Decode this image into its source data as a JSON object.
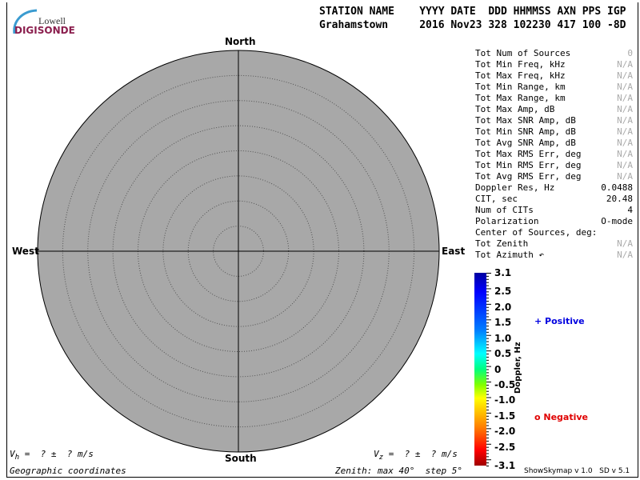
{
  "logo": {
    "line1": "Lowell",
    "line2": "DIGISONDE"
  },
  "header": {
    "labels": "STATION NAME    YYYY DATE  DDD HHMMSS AXN PPS IGP",
    "values": "Grahamstown     2016 Nov23 328 102230 417 100 -8D"
  },
  "compass": {
    "north": "North",
    "south": "South",
    "east": "East",
    "west": "West"
  },
  "rings": {
    "max_zenith_deg": 40,
    "step_deg": 5
  },
  "stats": [
    {
      "label": "Tot Num of Sources",
      "value": "0",
      "na": true
    },
    {
      "label": "Tot Min Freq, kHz",
      "value": "N/A",
      "na": true
    },
    {
      "label": "Tot Max Freq, kHz",
      "value": "N/A",
      "na": true
    },
    {
      "label": "Tot Min Range, km",
      "value": "N/A",
      "na": true
    },
    {
      "label": "Tot Max Range, km",
      "value": "N/A",
      "na": true
    },
    {
      "label": "Tot Max Amp, dB",
      "value": "N/A",
      "na": true
    },
    {
      "label": "Tot Max SNR Amp, dB",
      "value": "N/A",
      "na": true
    },
    {
      "label": "Tot Min SNR Amp, dB",
      "value": "N/A",
      "na": true
    },
    {
      "label": "Tot Avg SNR Amp, dB",
      "value": "N/A",
      "na": true
    },
    {
      "label": "Tot Max RMS Err, deg",
      "value": "N/A",
      "na": true
    },
    {
      "label": "Tot Min RMS Err, deg",
      "value": "N/A",
      "na": true
    },
    {
      "label": "Tot Avg RMS Err, deg",
      "value": "N/A",
      "na": true
    },
    {
      "label": "Doppler Res, Hz",
      "value": "0.0488",
      "na": false
    },
    {
      "label": "CIT, sec",
      "value": "20.48",
      "na": false
    },
    {
      "label": "Num of CITs",
      "value": "4",
      "na": false
    },
    {
      "label": "Polarization",
      "value": "O-mode",
      "na": false
    },
    {
      "label": "Center of Sources, deg:",
      "value": "",
      "na": false
    },
    {
      "label": "Tot            Zenith",
      "value": "N/A",
      "na": true
    },
    {
      "label": "Tot            Azimuth ↶",
      "value": "N/A",
      "na": true
    }
  ],
  "colorbar": {
    "title": "Doppler, Hz",
    "ticks": [
      "3.1",
      "2.5",
      "2.0",
      "1.5",
      "1.0",
      "0.5",
      "0",
      "-0.5",
      "-1.0",
      "-1.5",
      "-2.0",
      "-2.5",
      "-3.1"
    ]
  },
  "legend": {
    "positive": "Positive",
    "negative": "Negative",
    "positive_color": "#0000e0",
    "negative_color": "#e00000"
  },
  "footer": {
    "vh": "V",
    "vh_sub": "h",
    "vh_rest": " =  ? ±  ? m/s",
    "vz": "V",
    "vz_sub": "z",
    "vz_rest": " =  ? ±  ? m/s",
    "coords": "Geographic coordinates",
    "zenith": "Zenith: max 40°  step 5°",
    "version": "ShowSkymap v 1.0   SD v 5.1"
  }
}
